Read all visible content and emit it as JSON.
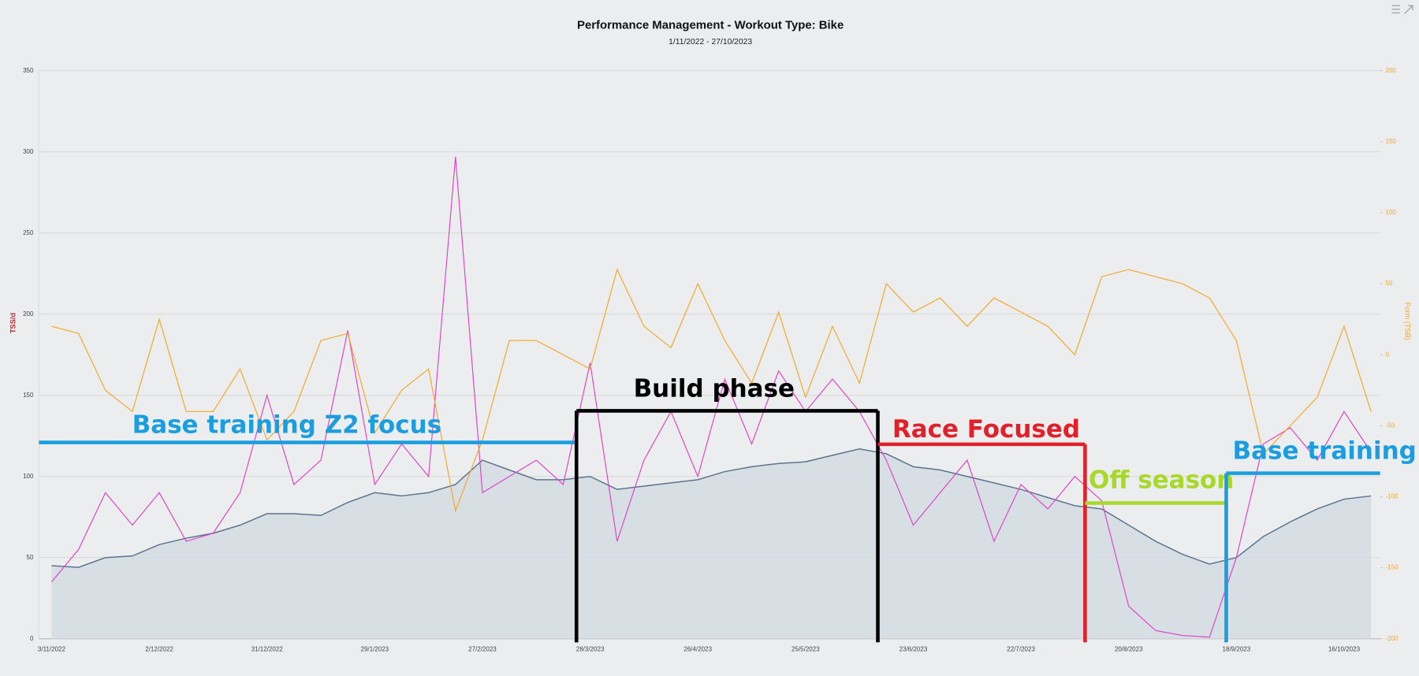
{
  "chart_data": {
    "type": "line",
    "title": "Performance Management - Workout Type: Bike",
    "subtitle": "1/11/2022 - 27/10/2023",
    "ylabel": "TSS/d",
    "y2label": "Form (TSB)",
    "categories": [
      "3/11/2022",
      null,
      null,
      null,
      "2/12/2022",
      null,
      null,
      null,
      "31/12/2022",
      null,
      null,
      null,
      "29/1/2023",
      null,
      null,
      null,
      "27/2/2023",
      null,
      null,
      null,
      "28/3/2023",
      null,
      null,
      null,
      "26/4/2023",
      null,
      null,
      null,
      "25/5/2023",
      null,
      null,
      null,
      "23/6/2023",
      null,
      null,
      null,
      "22/7/2023",
      null,
      null,
      null,
      "20/8/2023",
      null,
      null,
      null,
      "18/9/2023",
      null,
      null,
      null,
      "16/10/2023",
      null
    ],
    "ylim": [
      0,
      350
    ],
    "yticks": [
      0,
      50,
      100,
      150,
      200,
      250,
      300,
      350
    ],
    "y2lim": [
      -200,
      200
    ],
    "y2ticks": [
      -200,
      -150,
      -100,
      -50,
      0,
      50,
      100,
      150,
      200
    ],
    "grid": true,
    "series": [
      {
        "color": "#5a7590",
        "area": true,
        "fill": "#d3dae2",
        "values": [
          45,
          44,
          50,
          51,
          58,
          62,
          65,
          70,
          77,
          77,
          76,
          84,
          90,
          88,
          90,
          95,
          110,
          104,
          98,
          98,
          100,
          92,
          94,
          96,
          98,
          103,
          106,
          108,
          109,
          113,
          117,
          114,
          106,
          104,
          100,
          96,
          92,
          87,
          82,
          80,
          70,
          60,
          52,
          46,
          50,
          63,
          72,
          80,
          86,
          88
        ]
      },
      {
        "color": "#e040c8",
        "values": [
          35,
          55,
          90,
          70,
          90,
          60,
          65,
          90,
          150,
          95,
          110,
          190,
          95,
          120,
          100,
          297,
          90,
          100,
          110,
          95,
          170,
          60,
          110,
          140,
          100,
          160,
          120,
          165,
          140,
          160,
          140,
          110,
          70,
          90,
          110,
          60,
          95,
          80,
          100,
          85,
          20,
          5,
          2,
          1,
          50,
          120,
          130,
          110,
          140,
          115
        ]
      },
      {
        "color": "#f5a623",
        "axis": "y2",
        "values": [
          20,
          15,
          -25,
          -40,
          25,
          -40,
          -40,
          -10,
          -60,
          -40,
          10,
          15,
          -55,
          -25,
          -10,
          -110,
          -60,
          10,
          10,
          0,
          -10,
          60,
          20,
          5,
          50,
          10,
          -20,
          30,
          -30,
          20,
          -20,
          50,
          30,
          40,
          20,
          40,
          30,
          20,
          0,
          55,
          60,
          55,
          50,
          40,
          10,
          -70,
          -50,
          -30,
          20,
          -40
        ]
      }
    ],
    "annotations": [
      {
        "text": "Base training Z2 focus",
        "color": "#1a9ee0"
      },
      {
        "text": "Build phase",
        "color": "#000000"
      },
      {
        "text": "Race Focused",
        "color": "#e0202a"
      },
      {
        "text": "Off season",
        "color": "#a8d82a"
      },
      {
        "text": "Base training",
        "color": "#1a9ee0"
      }
    ]
  }
}
